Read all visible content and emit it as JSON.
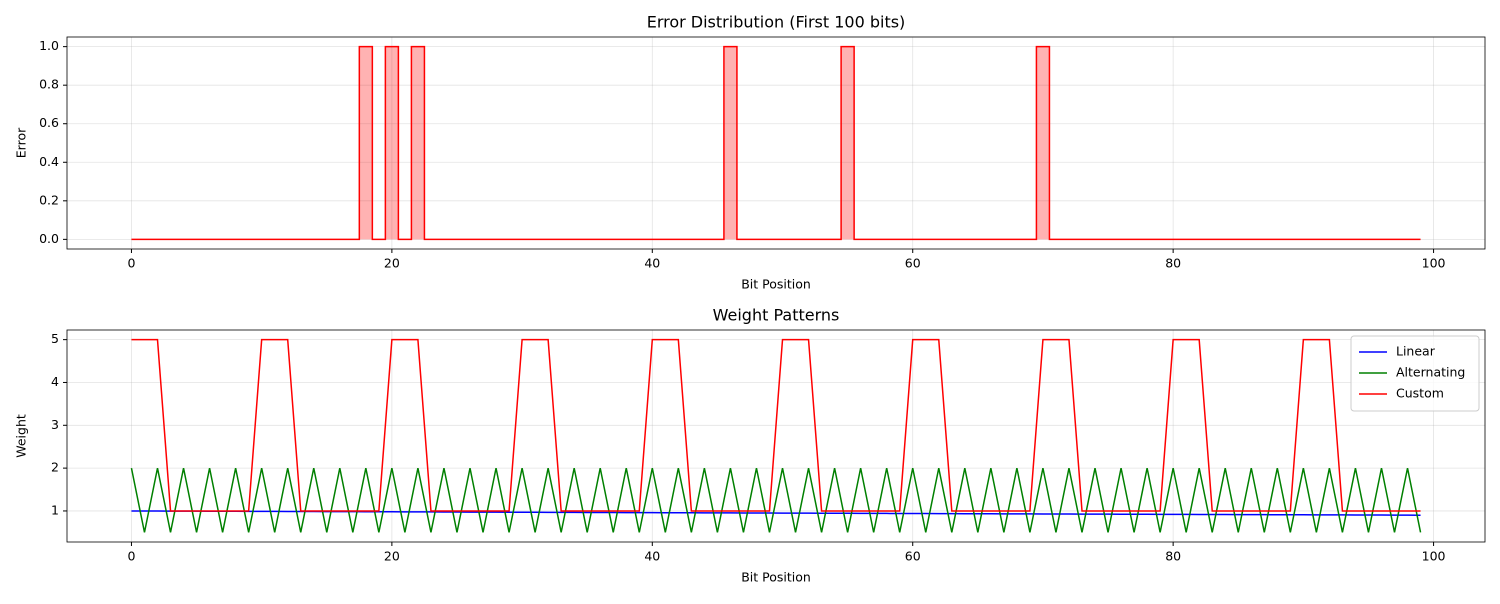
{
  "chart_data": [
    {
      "type": "step",
      "title": "Error Distribution (First 100 bits)",
      "xlabel": "Bit Position",
      "ylabel": "Error",
      "x": [
        0,
        1,
        2,
        3,
        4,
        5,
        6,
        7,
        8,
        9,
        10,
        11,
        12,
        13,
        14,
        15,
        16,
        17,
        18,
        19,
        20,
        21,
        22,
        23,
        24,
        25,
        26,
        27,
        28,
        29,
        30,
        31,
        32,
        33,
        34,
        35,
        36,
        37,
        38,
        39,
        40,
        41,
        42,
        43,
        44,
        45,
        46,
        47,
        48,
        49,
        50,
        51,
        52,
        53,
        54,
        55,
        56,
        57,
        58,
        59,
        60,
        61,
        62,
        63,
        64,
        65,
        66,
        67,
        68,
        69,
        70,
        71,
        72,
        73,
        74,
        75,
        76,
        77,
        78,
        79,
        80,
        81,
        82,
        83,
        84,
        85,
        86,
        87,
        88,
        89,
        90,
        91,
        92,
        93,
        94,
        95,
        96,
        97,
        98,
        99
      ],
      "series": [
        {
          "color": "#ff0000",
          "values": [
            0,
            0,
            0,
            0,
            0,
            0,
            0,
            0,
            0,
            0,
            0,
            0,
            0,
            0,
            0,
            0,
            0,
            0,
            1,
            0,
            1,
            0,
            1,
            0,
            0,
            0,
            0,
            0,
            0,
            0,
            0,
            0,
            0,
            0,
            0,
            0,
            0,
            0,
            0,
            0,
            0,
            0,
            0,
            0,
            0,
            0,
            1,
            0,
            0,
            0,
            0,
            0,
            0,
            0,
            0,
            1,
            0,
            0,
            0,
            0,
            0,
            0,
            0,
            0,
            0,
            0,
            0,
            0,
            0,
            0,
            1,
            0,
            0,
            0,
            0,
            0,
            0,
            0,
            0,
            0,
            0,
            0,
            0,
            0,
            0,
            0,
            0,
            0,
            0,
            0,
            0,
            0,
            0,
            0,
            0,
            0,
            0,
            0,
            0,
            0
          ]
        }
      ],
      "xlim": [
        -4.95,
        103.95
      ],
      "xticks": [
        0,
        20,
        40,
        60,
        80,
        100
      ],
      "ylim": [
        -0.05,
        1.05
      ],
      "yticks": [
        {
          "value": 0,
          "label": "0.0"
        },
        {
          "value": 0.2,
          "label": "0.2"
        },
        {
          "value": 0.4,
          "label": "0.4"
        },
        {
          "value": 0.6,
          "label": "0.6"
        },
        {
          "value": 0.8,
          "label": "0.8"
        },
        {
          "value": 1,
          "label": "1.0"
        }
      ],
      "grid": true,
      "fill": true
    },
    {
      "type": "line",
      "title": "Weight Patterns",
      "xlabel": "Bit Position",
      "ylabel": "Weight",
      "x": [
        0,
        1,
        2,
        3,
        4,
        5,
        6,
        7,
        8,
        9,
        10,
        11,
        12,
        13,
        14,
        15,
        16,
        17,
        18,
        19,
        20,
        21,
        22,
        23,
        24,
        25,
        26,
        27,
        28,
        29,
        30,
        31,
        32,
        33,
        34,
        35,
        36,
        37,
        38,
        39,
        40,
        41,
        42,
        43,
        44,
        45,
        46,
        47,
        48,
        49,
        50,
        51,
        52,
        53,
        54,
        55,
        56,
        57,
        58,
        59,
        60,
        61,
        62,
        63,
        64,
        65,
        66,
        67,
        68,
        69,
        70,
        71,
        72,
        73,
        74,
        75,
        76,
        77,
        78,
        79,
        80,
        81,
        82,
        83,
        84,
        85,
        86,
        87,
        88,
        89,
        90,
        91,
        92,
        93,
        94,
        95,
        96,
        97,
        98,
        99
      ],
      "series": [
        {
          "name": "Linear",
          "color": "#0000ff",
          "values": [
            1,
            0.999,
            0.998,
            0.997,
            0.996,
            0.995,
            0.994,
            0.993,
            0.992,
            0.991,
            0.99,
            0.989,
            0.988,
            0.987,
            0.986,
            0.985,
            0.984,
            0.983,
            0.982,
            0.981,
            0.98,
            0.979,
            0.978,
            0.977,
            0.976,
            0.975,
            0.974,
            0.973,
            0.972,
            0.971,
            0.97,
            0.969,
            0.968,
            0.967,
            0.966,
            0.965,
            0.964,
            0.963,
            0.962,
            0.961,
            0.96,
            0.959,
            0.958,
            0.957,
            0.956,
            0.955,
            0.954,
            0.953,
            0.952,
            0.951,
            0.95,
            0.949,
            0.948,
            0.947,
            0.946,
            0.945,
            0.944,
            0.943,
            0.942,
            0.941,
            0.94,
            0.939,
            0.938,
            0.937,
            0.936,
            0.935,
            0.934,
            0.933,
            0.932,
            0.931,
            0.93,
            0.929,
            0.928,
            0.927,
            0.926,
            0.925,
            0.924,
            0.923,
            0.922,
            0.921,
            0.92,
            0.919,
            0.918,
            0.917,
            0.916,
            0.915,
            0.914,
            0.913,
            0.912,
            0.911,
            0.91,
            0.909,
            0.908,
            0.907,
            0.906,
            0.905,
            0.904,
            0.903,
            0.902,
            0.901
          ]
        },
        {
          "name": "Alternating",
          "color": "#008000",
          "values": [
            2,
            0.5,
            2,
            0.5,
            2,
            0.5,
            2,
            0.5,
            2,
            0.5,
            2,
            0.5,
            2,
            0.5,
            2,
            0.5,
            2,
            0.5,
            2,
            0.5,
            2,
            0.5,
            2,
            0.5,
            2,
            0.5,
            2,
            0.5,
            2,
            0.5,
            2,
            0.5,
            2,
            0.5,
            2,
            0.5,
            2,
            0.5,
            2,
            0.5,
            2,
            0.5,
            2,
            0.5,
            2,
            0.5,
            2,
            0.5,
            2,
            0.5,
            2,
            0.5,
            2,
            0.5,
            2,
            0.5,
            2,
            0.5,
            2,
            0.5,
            2,
            0.5,
            2,
            0.5,
            2,
            0.5,
            2,
            0.5,
            2,
            0.5,
            2,
            0.5,
            2,
            0.5,
            2,
            0.5,
            2,
            0.5,
            2,
            0.5,
            2,
            0.5,
            2,
            0.5,
            2,
            0.5,
            2,
            0.5,
            2,
            0.5,
            2,
            0.5,
            2,
            0.5,
            2,
            0.5,
            2,
            0.5,
            2,
            0.5
          ]
        },
        {
          "name": "Custom",
          "color": "#ff0000",
          "values": [
            5,
            5,
            5,
            1,
            1,
            1,
            1,
            1,
            1,
            1,
            5,
            5,
            5,
            1,
            1,
            1,
            1,
            1,
            1,
            1,
            5,
            5,
            5,
            1,
            1,
            1,
            1,
            1,
            1,
            1,
            5,
            5,
            5,
            1,
            1,
            1,
            1,
            1,
            1,
            1,
            5,
            5,
            5,
            1,
            1,
            1,
            1,
            1,
            1,
            1,
            5,
            5,
            5,
            1,
            1,
            1,
            1,
            1,
            1,
            1,
            5,
            5,
            5,
            1,
            1,
            1,
            1,
            1,
            1,
            1,
            5,
            5,
            5,
            1,
            1,
            1,
            1,
            1,
            1,
            1,
            5,
            5,
            5,
            1,
            1,
            1,
            1,
            1,
            1,
            1,
            5,
            5,
            5,
            1,
            1,
            1,
            1,
            1,
            1,
            1
          ]
        }
      ],
      "xlim": [
        -4.95,
        103.95
      ],
      "xticks": [
        0,
        20,
        40,
        60,
        80,
        100
      ],
      "ylim": [
        0.275,
        5.225
      ],
      "yticks": [
        1,
        2,
        3,
        4,
        5
      ],
      "grid": true,
      "legend": "upper right"
    }
  ]
}
